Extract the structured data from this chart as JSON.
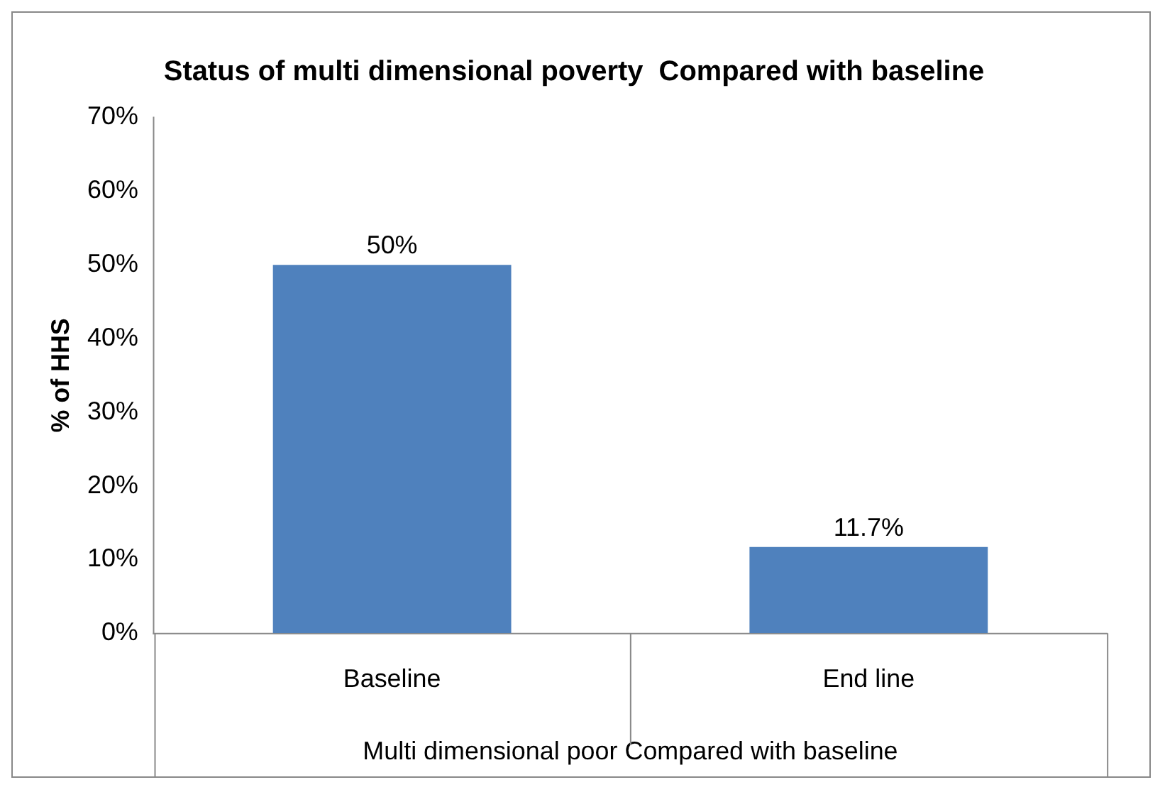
{
  "chart_data": {
    "type": "bar",
    "title": "Status of multi dimensional poverty  Compared with baseline",
    "ylabel": "% of HHS",
    "xlabel": "Multi dimensional poor Compared with baseline",
    "categories": [
      "Baseline",
      "End line"
    ],
    "values": [
      50,
      11.7
    ],
    "value_labels": [
      "50%",
      "11.7%"
    ],
    "color": "#4f81bd",
    "ylim": [
      0,
      70
    ],
    "yticks": [
      {
        "value": 0,
        "label": "0%"
      },
      {
        "value": 10,
        "label": "10%"
      },
      {
        "value": 20,
        "label": "20%"
      },
      {
        "value": 30,
        "label": "30%"
      },
      {
        "value": 40,
        "label": "40%"
      },
      {
        "value": 50,
        "label": "50%"
      },
      {
        "value": 60,
        "label": "60%"
      },
      {
        "value": 70,
        "label": "70%"
      }
    ],
    "grid": false,
    "legend": false
  }
}
